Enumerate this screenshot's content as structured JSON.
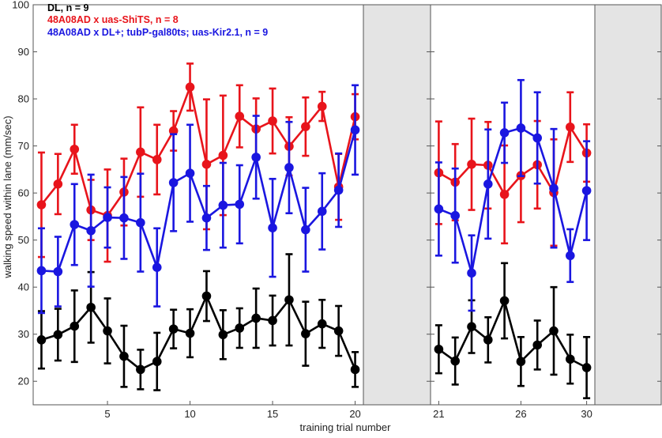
{
  "chart_data": {
    "type": "line",
    "title": "",
    "xlabel": "training trial number",
    "ylabel": "walking speed within lane (mm/sec)",
    "ylim": [
      15,
      100
    ],
    "y_ticks": [
      20,
      30,
      40,
      50,
      60,
      70,
      80,
      90,
      100
    ],
    "grid": false,
    "legend_position": "top-left",
    "panels": [
      {
        "x_range": [
          0.5,
          20.5
        ],
        "x_ticks": [
          5,
          10,
          15,
          20
        ],
        "shaded_after": 20.5,
        "shaded_until": 23.5
      },
      {
        "x_range": [
          20.5,
          30.5
        ],
        "x_ticks": [
          21,
          26,
          30
        ],
        "shaded_after": 30.5,
        "shaded_until": 34.5
      }
    ],
    "series": [
      {
        "name": "DL, n = 9",
        "color": "#000000",
        "x": [
          1,
          2,
          3,
          4,
          5,
          6,
          7,
          8,
          9,
          10,
          11,
          12,
          13,
          14,
          15,
          16,
          17,
          18,
          19,
          20,
          21,
          22,
          23,
          24,
          25,
          26,
          27,
          28,
          29,
          30
        ],
        "values": [
          28.8,
          29.9,
          31.7,
          35.7,
          30.7,
          25.3,
          22.5,
          24.2,
          31.1,
          30.2,
          38.1,
          29.9,
          31.3,
          33.4,
          32.9,
          37.3,
          30.1,
          32.2,
          30.7,
          22.5,
          26.8,
          24.3,
          31.6,
          28.8,
          37.1,
          24.2,
          27.7,
          30.7,
          24.7,
          22.9
        ],
        "error": [
          6.1,
          5.5,
          7.6,
          7.5,
          6.9,
          6.5,
          4.2,
          6.1,
          4.1,
          5.1,
          5.3,
          5.2,
          4.2,
          6.3,
          5.3,
          9.7,
          6.8,
          5.1,
          5.3,
          3.7,
          5.1,
          5.0,
          5.6,
          4.8,
          8.0,
          5.2,
          5.2,
          9.3,
          5.2,
          6.5
        ]
      },
      {
        "name": "48A08AD x uas-ShiTS, n = 8",
        "color": "#e8141b",
        "x": [
          1,
          2,
          3,
          4,
          5,
          6,
          7,
          8,
          9,
          10,
          11,
          12,
          13,
          14,
          15,
          16,
          17,
          18,
          19,
          20,
          21,
          22,
          23,
          24,
          25,
          26,
          27,
          28,
          29,
          30
        ],
        "values": [
          57.5,
          61.9,
          69.3,
          56.4,
          55.2,
          60.2,
          68.7,
          67.1,
          73.2,
          82.5,
          66.1,
          68.0,
          76.3,
          73.6,
          75.3,
          69.9,
          74.1,
          78.4,
          61.3,
          76.2,
          64.3,
          62.3,
          66.1,
          65.9,
          59.7,
          63.7,
          66.0,
          60.1,
          74.0,
          68.5
        ],
        "error": [
          11.1,
          6.4,
          5.2,
          6.4,
          9.8,
          7.1,
          9.5,
          7.4,
          4.2,
          5.0,
          13.8,
          12.7,
          6.6,
          6.5,
          6.9,
          6.2,
          6.2,
          3.1,
          7.0,
          4.8,
          10.9,
          8.1,
          9.7,
          9.2,
          10.4,
          9.9,
          9.3,
          11.3,
          7.4,
          6.1
        ]
      },
      {
        "name": "48A08AD x DL+; tubP-gal80ts; uas-Kir2.1,  n = 9",
        "color": "#1a16e0",
        "x": [
          1,
          2,
          3,
          4,
          5,
          6,
          7,
          8,
          9,
          10,
          11,
          12,
          13,
          14,
          15,
          16,
          17,
          18,
          19,
          20,
          21,
          22,
          23,
          24,
          25,
          26,
          27,
          28,
          29,
          30
        ],
        "values": [
          43.5,
          43.3,
          53.3,
          52.0,
          54.8,
          54.7,
          53.7,
          44.2,
          62.2,
          64.2,
          54.7,
          57.4,
          57.6,
          67.6,
          52.6,
          65.4,
          52.2,
          56.1,
          60.6,
          73.4,
          56.6,
          55.2,
          43.0,
          61.9,
          72.8,
          73.8,
          71.7,
          61.0,
          46.7,
          60.5
        ],
        "error": [
          9.0,
          7.4,
          8.6,
          11.9,
          6.4,
          8.7,
          10.4,
          8.3,
          10.3,
          10.3,
          6.8,
          9.0,
          8.3,
          8.8,
          10.4,
          9.7,
          8.9,
          8.1,
          7.8,
          9.5,
          9.9,
          10.0,
          8.0,
          11.6,
          6.4,
          10.2,
          9.7,
          12.6,
          5.6,
          10.5
        ]
      }
    ]
  }
}
